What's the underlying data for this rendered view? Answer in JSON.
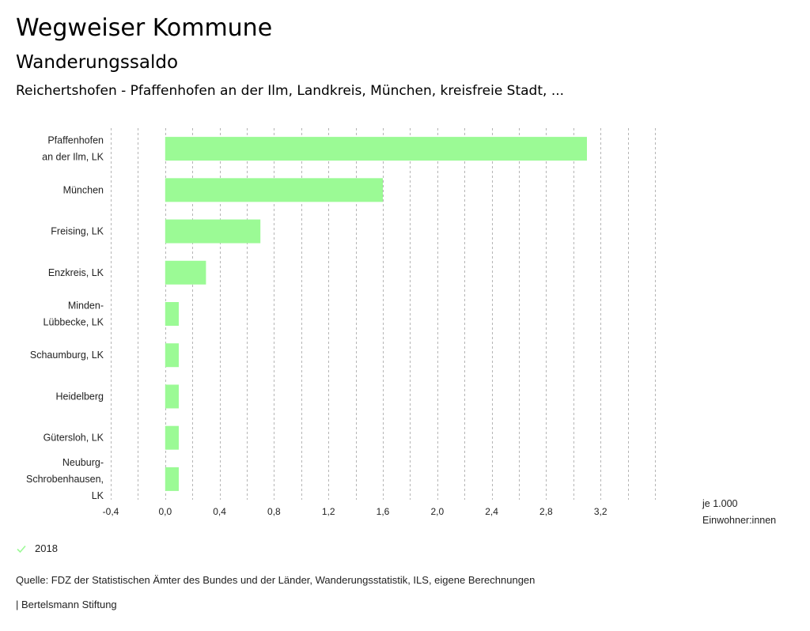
{
  "header": {
    "title": "Wegweiser Kommune",
    "subtitle": "Wanderungssaldo",
    "region": "Reichertshofen - Pfaffenhofen an der Ilm, Landkreis, München, kreisfreie Stadt, ..."
  },
  "chart_data": {
    "type": "bar",
    "orientation": "horizontal",
    "title": "Wanderungssaldo",
    "categories": [
      [
        "Pfaffenhofen",
        "an der Ilm, LK"
      ],
      [
        "München"
      ],
      [
        "Freising, LK"
      ],
      [
        "Enzkreis, LK"
      ],
      [
        "Minden-",
        "Lübbecke, LK"
      ],
      [
        "Schaumburg, LK"
      ],
      [
        "Heidelberg"
      ],
      [
        "Gütersloh, LK"
      ],
      [
        "Neuburg-",
        "Schrobenhausen,",
        "LK"
      ]
    ],
    "series": [
      {
        "name": "2018",
        "color": "#9bfa95",
        "values": [
          3.1,
          1.6,
          0.7,
          0.3,
          0.1,
          0.1,
          0.1,
          0.1,
          0.1
        ]
      }
    ],
    "xlim": [
      -0.4,
      3.6
    ],
    "xticks": [
      -0.4,
      0.0,
      0.4,
      0.8,
      1.2,
      1.6,
      2.0,
      2.4,
      2.8,
      3.2
    ],
    "xtick_labels": [
      "-0,4",
      "0,0",
      "0,4",
      "0,8",
      "1,2",
      "1,6",
      "2,0",
      "2,4",
      "2,8",
      "3,2"
    ],
    "gridline_step": 0.2,
    "grid": true,
    "xlabel": "je 1.000 Einwohner:innen",
    "ylabel": "",
    "legend_position": "bottom-left"
  },
  "unit": {
    "line1": "je 1.000",
    "line2": "Einwohner:innen"
  },
  "legend": {
    "label": "2018",
    "icon": "check-icon",
    "color": "#9bfa95"
  },
  "footer": {
    "source": "Quelle: FDZ der Statistischen Ämter des Bundes und der Länder, Wanderungsstatistik, ILS, eigene Berechnungen",
    "credit": "| Bertelsmann Stiftung"
  }
}
